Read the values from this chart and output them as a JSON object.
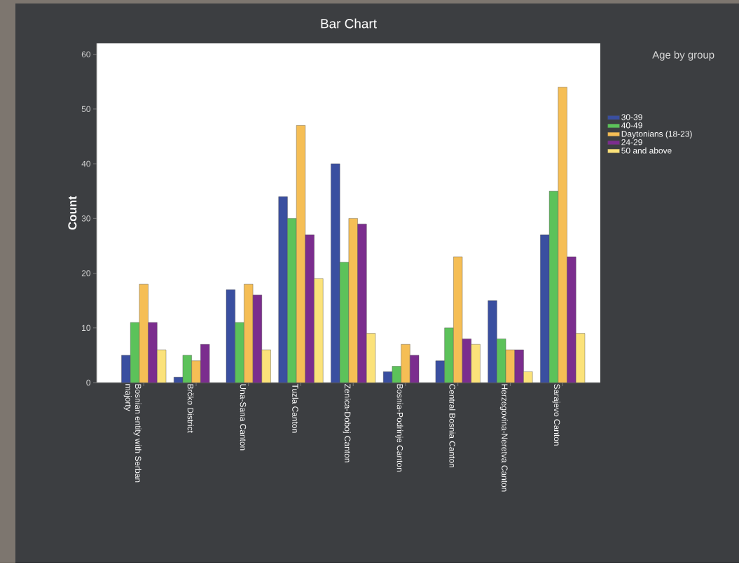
{
  "chart_data": {
    "type": "bar",
    "title": "Bar Chart",
    "xlabel": null,
    "ylabel": "Count",
    "legend_title": "Age by group",
    "legend": "right",
    "categories": [
      "Bosnian entity with Serban majorty",
      "Brčko District",
      "Una-Sana Canton",
      "Tuzla Canton",
      "Zenica-Doboj Canton",
      "Bosnia-Podrinje Canton",
      "Central Bosnia Canton",
      "Herzegovina-Neretva Canton",
      "Sarajevo Canton"
    ],
    "series": [
      {
        "name": "30-39",
        "color": "#3a4fa0",
        "values": [
          5,
          1,
          17,
          34,
          40,
          2,
          4,
          15,
          27
        ]
      },
      {
        "name": "40-49",
        "color": "#5cc25a",
        "values": [
          11,
          5,
          11,
          30,
          22,
          3,
          10,
          8,
          35
        ]
      },
      {
        "name": "Daytonians (18-23)",
        "color": "#f5be55",
        "values": [
          18,
          4,
          18,
          47,
          30,
          7,
          23,
          6,
          54
        ]
      },
      {
        "name": "24-29",
        "color": "#7b2d8e",
        "values": [
          11,
          7,
          16,
          27,
          29,
          5,
          8,
          6,
          23
        ]
      },
      {
        "name": "50 and above",
        "color": "#fbe27a",
        "values": [
          6,
          null,
          6,
          19,
          9,
          null,
          7,
          2,
          9
        ]
      }
    ],
    "ylim": [
      0,
      62
    ],
    "yticks": [
      0,
      10,
      20,
      30,
      40,
      50,
      60
    ],
    "grid": false
  }
}
